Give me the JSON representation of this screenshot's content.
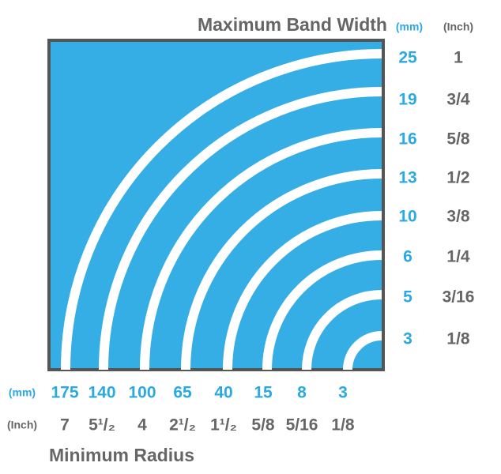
{
  "header": {
    "title": "Maximum Band Width",
    "mm_unit": "(mm)",
    "inch_unit": "(Inch)"
  },
  "band_widths": [
    {
      "mm": 25,
      "inch": 1
    },
    {
      "mm": 19,
      "inch": "3/4"
    },
    {
      "mm": 16,
      "inch": "5/8"
    },
    {
      "mm": 13,
      "inch": "1/2"
    },
    {
      "mm": 10,
      "inch": "3/8"
    },
    {
      "mm": 6,
      "inch": "1/4"
    },
    {
      "mm": 5,
      "inch": "3/16"
    },
    {
      "mm": 3,
      "inch": "1/8"
    }
  ],
  "radius_units": {
    "mm": "(mm)",
    "inch": "(Inch)"
  },
  "radii": [
    {
      "mm": 175,
      "inch": 7
    },
    {
      "mm": 140,
      "inch": "5¹/₂"
    },
    {
      "mm": 100,
      "inch": 4
    },
    {
      "mm": 65,
      "inch": "2¹/₂"
    },
    {
      "mm": 40,
      "inch": "1¹/₂"
    },
    {
      "mm": 15,
      "inch": "5/8"
    },
    {
      "mm": 8,
      "inch": "5/16"
    },
    {
      "mm": 3,
      "inch": "1/8"
    }
  ],
  "footer": {
    "title": "Minimum Radius"
  }
}
